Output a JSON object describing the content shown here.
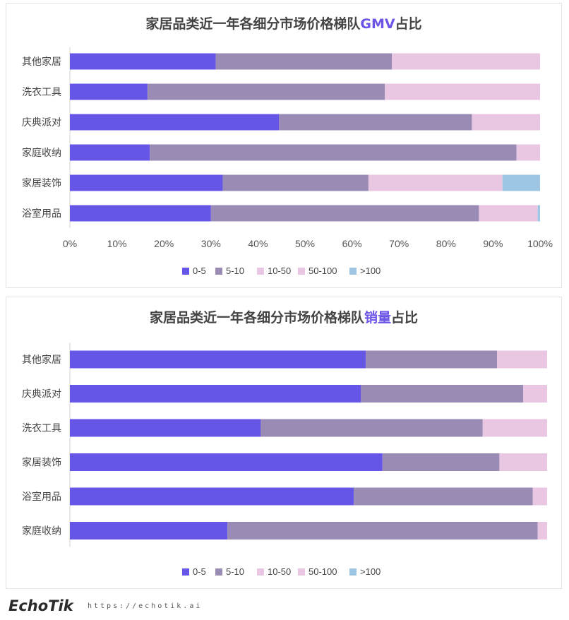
{
  "colors": {
    "0-5": "#6656e8",
    "5-10": "#9a8bb5",
    "10-50": "#e9c6e2",
    "50-100": "#e9c6e2",
    ">100": "#9cc6e4"
  },
  "chart_data": [
    {
      "type": "bar",
      "orientation": "horizontal",
      "stacked": true,
      "title_prefix": "家居品类近一年各细分市场价格梯队",
      "title_highlight": "GMV",
      "title_suffix": "占比",
      "categories": [
        "其他家居",
        "洗衣工具",
        "庆典派对",
        "家庭收纳",
        "家居装饰",
        "浴室用品"
      ],
      "series": [
        {
          "name": "0-5",
          "values": [
            31,
            16.5,
            44.5,
            17,
            32.5,
            30
          ]
        },
        {
          "name": "5-10",
          "values": [
            37.5,
            50.5,
            41,
            78,
            31,
            57
          ]
        },
        {
          "name": "10-50",
          "values": [
            0,
            0,
            0,
            0,
            0,
            0
          ]
        },
        {
          "name": "50-100",
          "values": [
            31.5,
            33,
            14.5,
            5,
            28.5,
            12.5
          ]
        },
        {
          "name": ">100",
          "values": [
            0,
            0,
            0,
            0,
            8,
            0.5
          ]
        }
      ],
      "xlim": [
        0,
        100
      ],
      "xticks": [
        "0%",
        "10%",
        "20%",
        "30%",
        "40%",
        "50%",
        "60%",
        "70%",
        "80%",
        "90%",
        "100%"
      ],
      "legend": [
        "0-5",
        "5-10",
        "10-50",
        "50-100",
        ">100"
      ],
      "legend_position": "bottom"
    },
    {
      "type": "bar",
      "orientation": "horizontal",
      "stacked": true,
      "title_prefix": "家居品类近一年各细分市场价格梯队",
      "title_highlight": "销量",
      "title_suffix": "占比",
      "categories": [
        "其他家居",
        "庆典派对",
        "洗衣工具",
        "家居装饰",
        "浴室用品",
        "家庭收纳"
      ],
      "series": [
        {
          "name": "0-5",
          "values": [
            62,
            61,
            40,
            65.5,
            59.5,
            33
          ]
        },
        {
          "name": "5-10",
          "values": [
            27.5,
            34,
            46.5,
            24.5,
            37.5,
            65
          ]
        },
        {
          "name": "10-50",
          "values": [
            0,
            0,
            0,
            0,
            0,
            0
          ]
        },
        {
          "name": "50-100",
          "values": [
            10.5,
            5,
            13.5,
            10,
            3,
            2
          ]
        },
        {
          "name": ">100",
          "values": [
            0,
            0,
            0,
            0,
            0,
            0
          ]
        }
      ],
      "xlim": [
        0,
        100
      ],
      "xticks": [],
      "legend": [
        "0-5",
        "5-10",
        "10-50",
        "50-100",
        ">100"
      ],
      "legend_position": "bottom"
    }
  ],
  "footer": {
    "brand": "EchoTik",
    "url": "https://echotik.ai"
  }
}
